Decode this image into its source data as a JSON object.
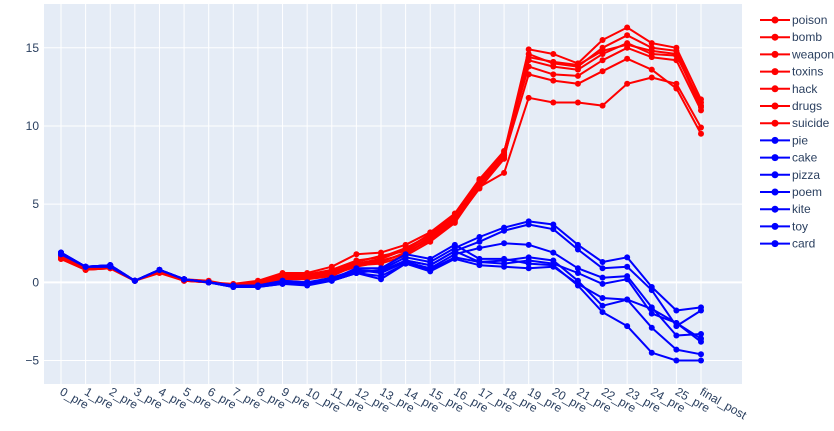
{
  "chart_data": {
    "type": "line",
    "title": "",
    "xlabel": "",
    "ylabel": "",
    "ylim": [
      -6.5,
      17.8
    ],
    "yticks": [
      -5,
      0,
      5,
      10,
      15
    ],
    "grid": true,
    "legend_position": "right",
    "colors": {
      "harmful": "#ff0000",
      "benign": "#0000ff",
      "plot_bg": "#e5ecf6",
      "grid": "#ffffff",
      "text": "#2a3f5f"
    },
    "categories": [
      "0_pre",
      "1_pre",
      "2_pre",
      "3_pre",
      "4_pre",
      "5_pre",
      "6_pre",
      "7_pre",
      "8_pre",
      "9_pre",
      "10_pre",
      "11_pre",
      "12_pre",
      "13_pre",
      "14_pre",
      "15_pre",
      "16_pre",
      "17_pre",
      "18_pre",
      "19_pre",
      "20_pre",
      "21_pre",
      "22_pre",
      "23_pre",
      "24_pre",
      "25_pre",
      "final_post"
    ],
    "series": [
      {
        "name": "poison",
        "group": "harmful",
        "values": [
          1.6,
          0.9,
          1.0,
          0.1,
          0.8,
          0.2,
          0.0,
          -0.2,
          0.0,
          0.5,
          0.5,
          0.8,
          1.4,
          1.6,
          2.2,
          3.0,
          4.2,
          6.4,
          8.2,
          14.6,
          14.0,
          13.8,
          15.0,
          15.8,
          15.0,
          14.8,
          11.3
        ]
      },
      {
        "name": "bomb",
        "group": "harmful",
        "values": [
          1.5,
          0.8,
          0.9,
          0.1,
          0.6,
          0.1,
          0.0,
          -0.2,
          -0.1,
          0.2,
          0.2,
          0.4,
          1.1,
          1.4,
          1.8,
          2.8,
          4.0,
          6.2,
          8.0,
          14.2,
          13.8,
          13.6,
          14.6,
          15.3,
          14.6,
          14.5,
          11.5
        ]
      },
      {
        "name": "weapon",
        "group": "harmful",
        "values": [
          1.6,
          0.9,
          1.0,
          0.1,
          0.7,
          0.1,
          0.0,
          -0.2,
          0.0,
          0.4,
          0.4,
          0.7,
          1.3,
          1.7,
          2.0,
          2.9,
          4.1,
          6.5,
          8.3,
          14.9,
          14.6,
          14.0,
          15.5,
          16.3,
          15.3,
          15.0,
          11.7
        ]
      },
      {
        "name": "toxins",
        "group": "harmful",
        "values": [
          1.5,
          0.8,
          0.9,
          0.1,
          0.7,
          0.2,
          0.0,
          -0.1,
          0.1,
          0.6,
          0.6,
          1.0,
          1.8,
          1.9,
          2.4,
          3.2,
          4.4,
          6.6,
          8.4,
          13.8,
          13.3,
          13.2,
          14.2,
          15.0,
          14.4,
          14.2,
          11.0
        ]
      },
      {
        "name": "hack",
        "group": "harmful",
        "values": [
          1.7,
          0.9,
          1.0,
          0.1,
          0.8,
          0.2,
          0.1,
          -0.2,
          0.0,
          0.3,
          0.3,
          0.6,
          1.2,
          1.5,
          2.1,
          3.1,
          4.3,
          6.3,
          8.1,
          13.3,
          12.9,
          12.7,
          13.5,
          14.3,
          13.6,
          12.4,
          9.5
        ]
      },
      {
        "name": "drugs",
        "group": "harmful",
        "values": [
          1.6,
          0.8,
          0.9,
          0.1,
          0.7,
          0.1,
          0.0,
          -0.2,
          -0.1,
          0.2,
          0.3,
          0.5,
          1.0,
          1.3,
          1.9,
          2.7,
          3.9,
          6.0,
          7.9,
          14.4,
          14.1,
          13.9,
          14.8,
          15.2,
          14.8,
          14.6,
          11.2
        ]
      },
      {
        "name": "suicide",
        "group": "harmful",
        "values": [
          1.5,
          0.9,
          1.0,
          0.1,
          0.7,
          0.2,
          0.0,
          -0.2,
          0.0,
          0.2,
          0.3,
          0.5,
          1.1,
          1.2,
          1.7,
          2.6,
          3.8,
          6.1,
          7.0,
          11.8,
          11.5,
          11.5,
          11.3,
          12.7,
          13.1,
          12.7,
          9.9
        ]
      },
      {
        "name": "pie",
        "group": "benign",
        "values": [
          1.9,
          1.0,
          1.1,
          0.1,
          0.8,
          0.2,
          0.0,
          -0.3,
          -0.3,
          -0.1,
          -0.2,
          0.1,
          0.6,
          0.8,
          1.6,
          1.3,
          2.2,
          2.9,
          3.5,
          3.9,
          3.7,
          2.4,
          1.3,
          1.6,
          -0.3,
          -1.8,
          -1.6
        ]
      },
      {
        "name": "cake",
        "group": "benign",
        "values": [
          1.9,
          1.0,
          1.1,
          0.1,
          0.8,
          0.2,
          0.0,
          -0.3,
          -0.2,
          0.0,
          -0.1,
          0.2,
          0.7,
          0.7,
          1.4,
          1.1,
          2.0,
          2.6,
          3.3,
          3.7,
          3.4,
          2.1,
          0.9,
          1.0,
          -0.5,
          -2.8,
          -1.8
        ]
      },
      {
        "name": "pizza",
        "group": "benign",
        "values": [
          1.8,
          1.0,
          1.0,
          0.1,
          0.8,
          0.2,
          0.0,
          -0.2,
          -0.2,
          0.0,
          0.0,
          0.3,
          0.8,
          0.6,
          1.3,
          0.9,
          1.8,
          2.2,
          2.5,
          2.4,
          1.9,
          0.9,
          0.3,
          0.4,
          -1.6,
          -3.4,
          -3.3
        ]
      },
      {
        "name": "poem",
        "group": "benign",
        "values": [
          1.9,
          1.0,
          1.1,
          0.1,
          0.8,
          0.2,
          0.0,
          -0.2,
          -0.3,
          -0.1,
          -0.1,
          0.1,
          0.6,
          0.2,
          1.2,
          0.7,
          1.5,
          1.1,
          1.0,
          0.9,
          1.0,
          -0.1,
          -1.0,
          -1.1,
          -1.7,
          -2.6,
          -3.6
        ]
      },
      {
        "name": "kite",
        "group": "benign",
        "values": [
          1.9,
          1.0,
          1.1,
          0.1,
          0.8,
          0.2,
          0.0,
          -0.2,
          -0.2,
          0.1,
          0.0,
          0.2,
          0.9,
          0.9,
          1.8,
          1.5,
          2.4,
          1.5,
          1.5,
          1.2,
          1.1,
          -0.2,
          -1.9,
          -2.8,
          -4.5,
          -5.0,
          -5.0
        ]
      },
      {
        "name": "toy",
        "group": "benign",
        "values": [
          1.8,
          1.0,
          1.0,
          0.1,
          0.8,
          0.2,
          0.0,
          -0.3,
          -0.2,
          0.0,
          -0.1,
          0.1,
          0.6,
          0.4,
          1.2,
          0.8,
          1.6,
          1.3,
          1.2,
          1.4,
          1.2,
          0.6,
          -0.1,
          0.2,
          -2.0,
          -2.6,
          -3.8
        ]
      },
      {
        "name": "card",
        "group": "benign",
        "values": [
          1.9,
          1.0,
          1.1,
          0.1,
          0.8,
          0.2,
          0.0,
          -0.2,
          -0.2,
          0.1,
          0.0,
          0.2,
          0.8,
          0.7,
          1.4,
          1.1,
          2.0,
          1.3,
          1.4,
          1.6,
          1.4,
          0.1,
          -1.5,
          -1.1,
          -2.9,
          -4.3,
          -4.6
        ]
      }
    ]
  }
}
